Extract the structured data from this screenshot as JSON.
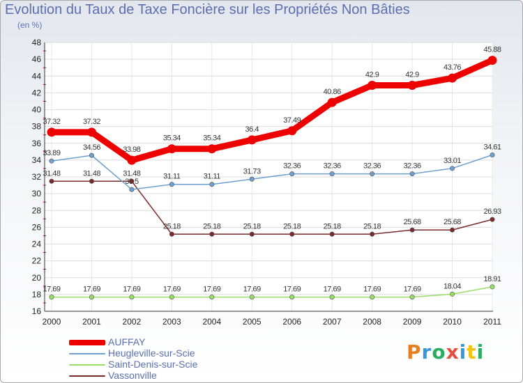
{
  "header": {
    "title": "Evolution du Taux de Taxe Foncière sur les Propriétés Non Bâties",
    "unit": "(en %)"
  },
  "logo": {
    "text": "Proxiti",
    "colors": [
      "#e67e22",
      "#3498db",
      "#27ae60",
      "#e74c3c",
      "#3498db",
      "#f1c40f",
      "#27ae60"
    ]
  },
  "chart_data": {
    "type": "line",
    "title": "Evolution du Taux de Taxe Foncière sur les Propriétés Non Bâties",
    "ylabel": "(en %)",
    "xlabel": "",
    "x": [
      "2000",
      "2001",
      "2002",
      "2003",
      "2004",
      "2005",
      "2006",
      "2007",
      "2008",
      "2009",
      "2010",
      "2011"
    ],
    "ylim": [
      16,
      48
    ],
    "yticks": [
      16,
      18,
      20,
      22,
      24,
      26,
      28,
      30,
      32,
      34,
      36,
      38,
      40,
      42,
      44,
      46,
      48
    ],
    "grid": true,
    "legend_position": "bottom-left",
    "series": [
      {
        "name": "AUFFAY",
        "color": "#ee0000",
        "values": [
          37.32,
          37.32,
          33.98,
          35.34,
          35.34,
          36.4,
          37.49,
          40.86,
          42.9,
          42.9,
          43.76,
          45.88
        ],
        "labels": [
          "37.32",
          "37.32",
          "33.98",
          "35.34",
          "35.34",
          "36.4",
          "37.49",
          "40.86",
          "42.9",
          "42.9",
          "43.76",
          "45.88"
        ]
      },
      {
        "name": "Heugleville-sur-Scie",
        "color": "#6e9fd1",
        "values": [
          33.89,
          34.56,
          30.5,
          31.11,
          31.11,
          31.73,
          32.36,
          32.36,
          32.36,
          32.36,
          33.01,
          34.61
        ],
        "labels": [
          "33.89",
          "34.56",
          "30.5",
          "31.11",
          "31.11",
          "31.73",
          "32.36",
          "32.36",
          "32.36",
          "32.36",
          "33.01",
          "34.61"
        ]
      },
      {
        "name": "Saint-Denis-sur-Scie",
        "color": "#99dd66",
        "values": [
          17.69,
          17.69,
          17.69,
          17.69,
          17.69,
          17.69,
          17.69,
          17.69,
          17.69,
          17.69,
          18.04,
          18.91
        ],
        "labels": [
          "17.69",
          "17.69",
          "17.69",
          "17.69",
          "17.69",
          "17.69",
          "17.69",
          "17.69",
          "17.69",
          "17.69",
          "18.04",
          "18.91"
        ]
      },
      {
        "name": "Vassonville",
        "color": "#7a2a2a",
        "values": [
          31.48,
          31.48,
          31.48,
          25.18,
          25.18,
          25.18,
          25.18,
          25.18,
          25.18,
          25.68,
          25.68,
          26.93
        ],
        "labels": [
          "31.48",
          "31.48",
          "31.48",
          "25.18",
          "25.18",
          "25.18",
          "25.18",
          "25.18",
          "25.18",
          "25.68",
          "25.68",
          "26.93"
        ]
      }
    ]
  }
}
